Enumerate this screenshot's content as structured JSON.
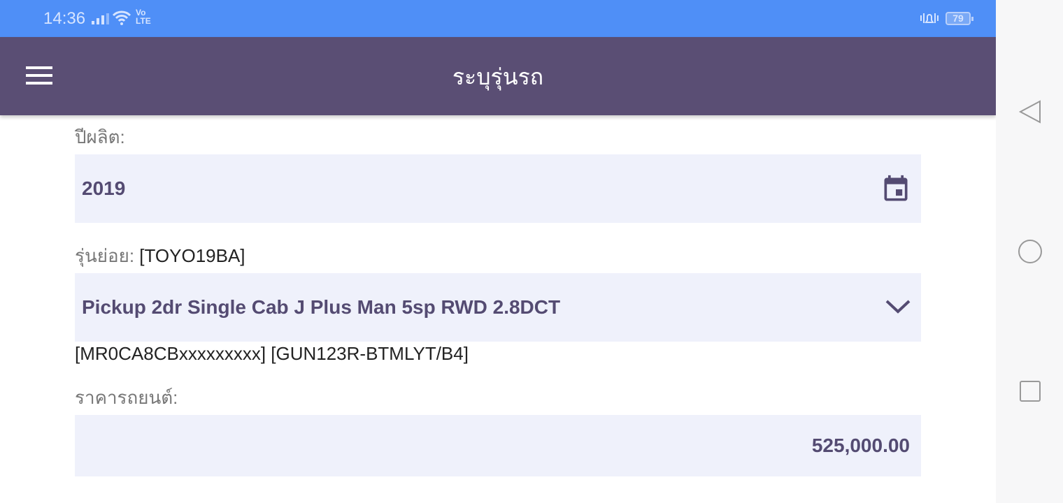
{
  "status_bar": {
    "time": "14:36",
    "volte": "Vo LTE",
    "battery": "79"
  },
  "app_bar": {
    "title": "ระบุรุ่นรถ",
    "menu_icon": "hamburger-icon"
  },
  "form": {
    "year_label": "ปีผลิต:",
    "year_value": "2019",
    "submodel_label": "รุ่นย่อย:",
    "submodel_code": "[TOYO19BA]",
    "submodel_value": "Pickup 2dr Single Cab J Plus Man 5sp RWD 2.8DCT",
    "submodel_note": "[MR0CA8CBxxxxxxxxx] [GUN123R-BTMLYT/B4]",
    "price_label": "ราคารถยนต์:",
    "price_value": "525,000.00"
  },
  "colors": {
    "status": "#4f8ff7",
    "appbar": "#5a4e74",
    "field": "#eff1fb",
    "field_text": "#544b72"
  }
}
